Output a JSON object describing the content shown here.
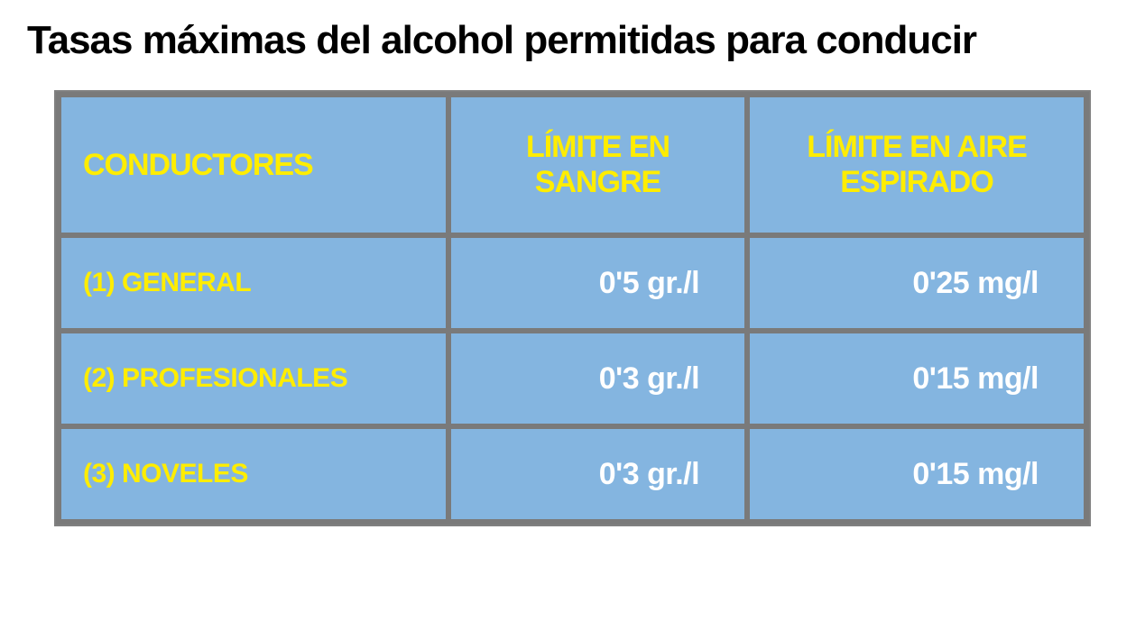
{
  "title": "Tasas máximas del alcohol permitidas para conducir",
  "table": {
    "type": "table",
    "background_color": "#ffffff",
    "cell_background": "#84b5e0",
    "border_color": "#7a7a7a",
    "header_text_color": "#ffed00",
    "label_text_color": "#ffed00",
    "value_text_color": "#ffffff",
    "title_fontsize": 44,
    "header_fontsize": 34,
    "label_fontsize": 30,
    "value_fontsize": 34,
    "columns": [
      {
        "label": "CONDUCTORES",
        "align": "left",
        "width": "38%"
      },
      {
        "label": "LÍMITE EN SANGRE",
        "align": "center",
        "width": "29%"
      },
      {
        "label": "LÍMITE EN AIRE ESPIRADO",
        "align": "center",
        "width": "33%"
      }
    ],
    "rows": [
      {
        "label": "(1) GENERAL",
        "blood": "0'5 gr./l",
        "air": "0'25 mg/l"
      },
      {
        "label": "(2) PROFESIONALES",
        "blood": "0'3 gr./l",
        "air": "0'15 mg/l"
      },
      {
        "label": "(3) NOVELES",
        "blood": "0'3 gr./l",
        "air": "0'15 mg/l"
      }
    ]
  }
}
